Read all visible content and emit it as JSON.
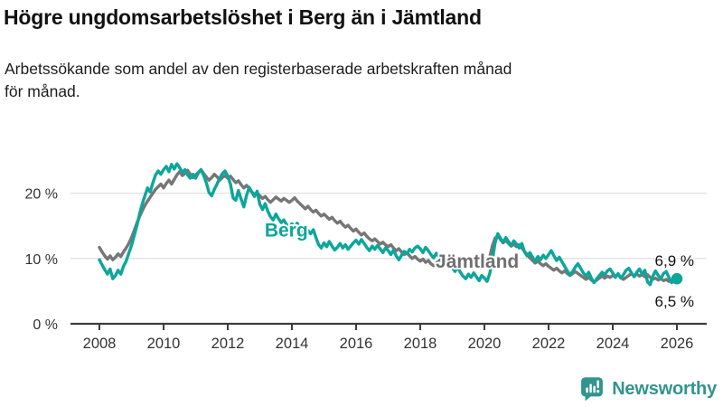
{
  "page": {
    "title": "Högre ungdomsarbetslöshet i Berg än i Jämtland",
    "subtitle": "Arbetssökande som andel av den registerbaserade arbetskraften månad\nför månad."
  },
  "branding": {
    "logo_text": "Newsworthy",
    "logo_icon": "bar-chart-speech-bubble-icon",
    "brand_color": "#31948D"
  },
  "chart_data": {
    "type": "line",
    "title": "Högre ungdomsarbetslöshet i Berg än i Jämtland",
    "frequency": "monthly",
    "x_start_year": 2008,
    "x_end_year": 2026,
    "unit": "%",
    "grid": true,
    "legend_position": "inline-labels",
    "ylim": [
      0,
      26
    ],
    "y_ticks": [
      {
        "label": "0 %",
        "value": 0
      },
      {
        "label": "10 %",
        "value": 10
      },
      {
        "label": "20 %",
        "value": 20
      }
    ],
    "x_ticks": [
      {
        "label": "2008",
        "year": 2008
      },
      {
        "label": "2010",
        "year": 2010
      },
      {
        "label": "2012",
        "year": 2012
      },
      {
        "label": "2014",
        "year": 2014
      },
      {
        "label": "2016",
        "year": 2016
      },
      {
        "label": "2018",
        "year": 2018
      },
      {
        "label": "2020",
        "year": 2020
      },
      {
        "label": "2022",
        "year": 2022
      },
      {
        "label": "2024",
        "year": 2024
      },
      {
        "label": "2026",
        "year": 2026
      }
    ],
    "series": [
      {
        "name": "Jämtland",
        "color": "#767676",
        "label_color": "#6f6f6f",
        "end_label": "6,5 %",
        "end_value": 6.5,
        "label_at": {
          "year": 2018.48,
          "value": 8.6
        },
        "end_dot": false,
        "values": [
          11.7,
          11.0,
          10.4,
          9.9,
          10.4,
          9.8,
          10.2,
          10.7,
          10.3,
          11.0,
          11.6,
          12.3,
          13.2,
          14.3,
          15.4,
          16.4,
          17.3,
          18.1,
          18.8,
          19.4,
          20.0,
          20.6,
          21.0,
          21.4,
          20.8,
          21.5,
          22.0,
          21.4,
          22.1,
          22.8,
          23.3,
          22.7,
          23.0,
          23.5,
          22.9,
          22.4,
          22.8,
          23.2,
          23.6,
          23.0,
          22.5,
          22.0,
          22.4,
          22.9,
          22.5,
          22.0,
          22.4,
          22.7,
          22.3,
          22.6,
          22.1,
          21.6,
          21.9,
          21.3,
          20.8,
          21.2,
          20.7,
          20.2,
          19.8,
          20.1,
          19.6,
          19.2,
          19.5,
          19.0,
          18.6,
          19.0,
          19.4,
          19.1,
          18.8,
          19.2,
          18.9,
          18.6,
          18.9,
          19.3,
          18.8,
          18.4,
          18.0,
          17.6,
          18.0,
          17.5,
          17.1,
          17.4,
          16.9,
          16.5,
          16.8,
          16.4,
          16.0,
          16.3,
          15.8,
          15.4,
          15.7,
          15.2,
          14.8,
          15.1,
          14.6,
          14.2,
          14.5,
          14.0,
          13.6,
          13.9,
          13.4,
          13.0,
          12.7,
          13.0,
          12.6,
          12.2,
          12.5,
          12.1,
          11.8,
          12.1,
          11.6,
          11.2,
          11.5,
          11.0,
          10.6,
          10.9,
          10.4,
          10.0,
          10.3,
          9.9,
          9.6,
          9.9,
          9.4,
          9.7,
          9.2,
          8.9,
          9.3,
          9.6,
          9.2,
          9.5,
          9.8,
          9.5,
          9.2,
          9.5,
          9.1,
          9.4,
          9.0,
          8.7,
          9.0,
          9.3,
          8.9,
          9.2,
          8.8,
          9.1,
          9.4,
          9.0,
          10.2,
          12.0,
          13.1,
          13.5,
          12.9,
          12.4,
          12.8,
          12.3,
          11.9,
          12.2,
          11.8,
          12.1,
          11.6,
          11.1,
          10.6,
          10.1,
          9.7,
          9.3,
          9.6,
          9.2,
          8.9,
          9.2,
          8.8,
          8.5,
          8.2,
          8.5,
          8.1,
          7.8,
          8.1,
          7.7,
          7.4,
          7.7,
          8.0,
          7.7,
          7.4,
          7.1,
          6.8,
          7.1,
          6.7,
          6.4,
          6.7,
          7.0,
          7.3,
          7.0,
          7.3,
          7.1,
          7.4,
          7.2,
          7.5,
          7.1,
          6.8,
          7.1,
          7.4,
          7.7,
          7.3,
          7.6,
          7.3,
          7.5,
          7.2,
          7.5,
          7.1,
          6.8,
          7.0,
          6.7,
          6.9,
          6.6,
          6.8,
          6.5,
          6.7,
          6.4,
          6.5
        ]
      },
      {
        "name": "Berg",
        "color": "#0CA69B",
        "label_color": "#0CA69B",
        "end_label": "6,9 %",
        "end_value": 6.9,
        "label_at": {
          "year": 2013.15,
          "value": 13.4
        },
        "end_dot": true,
        "values": [
          9.8,
          9.0,
          8.3,
          7.6,
          8.4,
          6.9,
          7.4,
          8.2,
          7.6,
          8.8,
          9.6,
          10.8,
          12.0,
          13.5,
          15.0,
          16.8,
          18.3,
          19.6,
          20.8,
          20.2,
          21.6,
          22.8,
          23.4,
          22.9,
          23.6,
          24.1,
          23.3,
          24.4,
          23.7,
          24.5,
          23.9,
          23.2,
          23.6,
          22.8,
          22.3,
          22.9,
          22.3,
          23.1,
          23.6,
          22.7,
          21.6,
          20.1,
          19.6,
          20.6,
          21.4,
          22.3,
          23.0,
          23.4,
          22.6,
          21.4,
          19.3,
          18.9,
          20.4,
          19.1,
          17.9,
          19.6,
          20.9,
          20.2,
          19.5,
          20.3,
          18.3,
          17.5,
          18.4,
          17.2,
          16.4,
          15.9,
          16.8,
          16.1,
          15.5,
          15.9,
          15.2,
          14.8,
          15.3,
          14.7,
          15.4,
          14.6,
          14.0,
          13.6,
          14.3,
          13.8,
          14.4,
          13.2,
          12.1,
          11.6,
          12.4,
          11.8,
          12.6,
          11.9,
          11.3,
          11.7,
          12.3,
          11.6,
          12.1,
          11.4,
          11.9,
          12.4,
          12.8,
          12.2,
          12.9,
          12.3,
          11.7,
          11.2,
          11.9,
          11.4,
          12.0,
          11.5,
          10.9,
          11.6,
          11.2,
          10.6,
          11.3,
          10.4,
          9.8,
          10.5,
          11.1,
          10.7,
          11.4,
          11.0,
          11.6,
          11.9,
          11.5,
          10.9,
          11.7,
          11.2,
          10.6,
          10.1,
          10.8,
          10.3,
          9.7,
          10.2,
          9.5,
          9.0,
          8.6,
          8.0,
          8.7,
          7.9,
          7.3,
          6.9,
          7.6,
          7.1,
          7.8,
          7.2,
          6.6,
          7.4,
          7.0,
          6.5,
          7.7,
          9.8,
          12.4,
          13.8,
          13.1,
          12.5,
          13.2,
          12.6,
          12.0,
          12.7,
          12.2,
          11.6,
          12.3,
          11.0,
          10.4,
          10.9,
          10.2,
          9.6,
          10.3,
          9.8,
          10.5,
          10.0,
          10.6,
          11.2,
          10.4,
          9.7,
          10.2,
          9.5,
          8.8,
          8.1,
          7.5,
          8.0,
          8.7,
          9.2,
          8.5,
          7.8,
          7.3,
          7.9,
          7.0,
          6.3,
          6.9,
          7.4,
          7.9,
          7.5,
          8.1,
          8.4,
          7.8,
          7.1,
          7.7,
          7.0,
          7.5,
          8.2,
          8.5,
          7.8,
          7.2,
          7.9,
          8.4,
          7.6,
          8.2,
          6.4,
          6.0,
          7.3,
          8.1,
          7.4,
          6.9,
          7.7,
          8.0,
          7.1,
          6.3,
          6.6,
          6.9
        ]
      }
    ]
  }
}
